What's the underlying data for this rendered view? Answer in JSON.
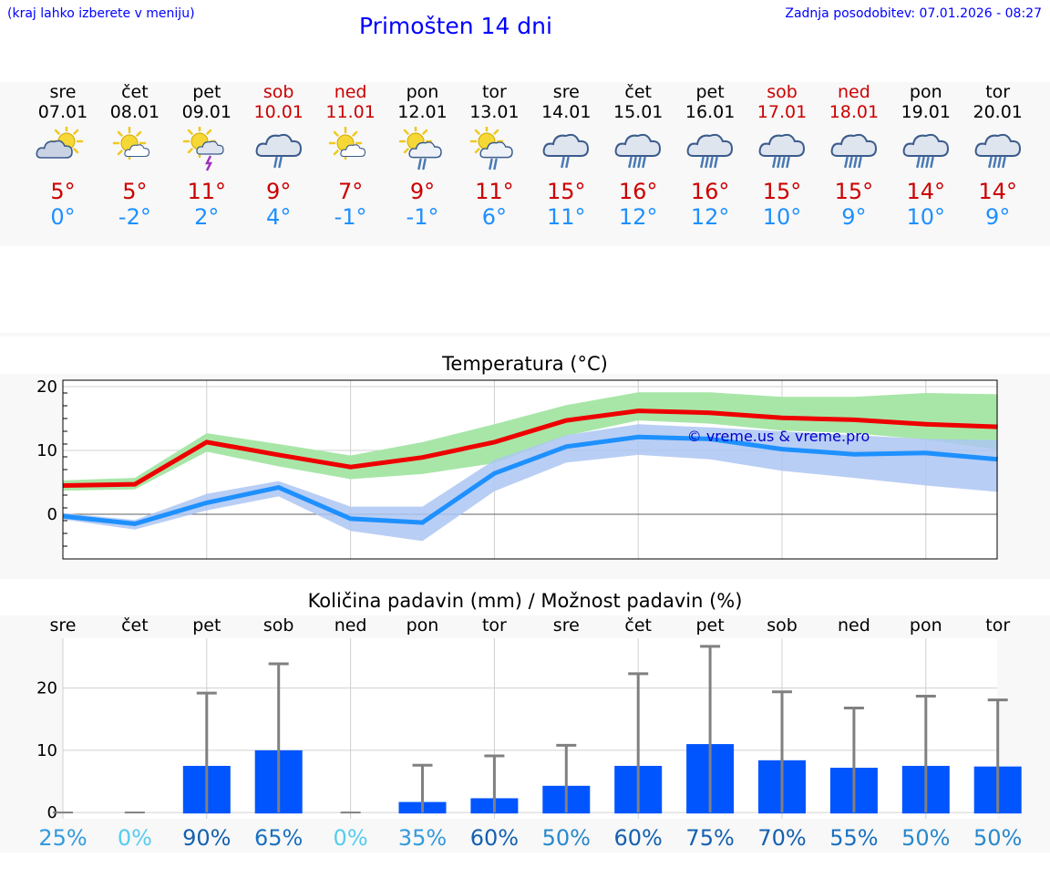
{
  "header": {
    "hint": "(kraj lahko izberete v meniju)",
    "title": "Primošten 14 dni",
    "updated": "Zadnja posodobitev: 07.01.2026 - 08:27"
  },
  "days": [
    {
      "name": "sre",
      "date": "07.01",
      "weekend": false,
      "icon": "partly-cloudy-icon",
      "max": "5°",
      "min": "0°"
    },
    {
      "name": "čet",
      "date": "08.01",
      "weekend": false,
      "icon": "mostly-sunny-icon",
      "max": "5°",
      "min": "-2°"
    },
    {
      "name": "pet",
      "date": "09.01",
      "weekend": false,
      "icon": "sun-cloud-thunder-icon",
      "max": "11°",
      "min": "2°"
    },
    {
      "name": "sob",
      "date": "10.01",
      "weekend": true,
      "icon": "cloud-rain-icon",
      "max": "9°",
      "min": "4°"
    },
    {
      "name": "ned",
      "date": "11.01",
      "weekend": true,
      "icon": "mostly-sunny-icon",
      "max": "7°",
      "min": "-1°"
    },
    {
      "name": "pon",
      "date": "12.01",
      "weekend": false,
      "icon": "sun-cloud-rain-icon",
      "max": "9°",
      "min": "-1°"
    },
    {
      "name": "tor",
      "date": "13.01",
      "weekend": false,
      "icon": "sun-cloud-rain-icon",
      "max": "11°",
      "min": "6°"
    },
    {
      "name": "sre",
      "date": "14.01",
      "weekend": false,
      "icon": "cloud-rain-icon",
      "max": "15°",
      "min": "11°"
    },
    {
      "name": "čet",
      "date": "15.01",
      "weekend": false,
      "icon": "cloud-heavy-rain-icon",
      "max": "16°",
      "min": "12°"
    },
    {
      "name": "pet",
      "date": "16.01",
      "weekend": false,
      "icon": "cloud-heavy-rain-icon",
      "max": "16°",
      "min": "12°"
    },
    {
      "name": "sob",
      "date": "17.01",
      "weekend": true,
      "icon": "cloud-heavy-rain-icon",
      "max": "15°",
      "min": "10°"
    },
    {
      "name": "ned",
      "date": "18.01",
      "weekend": true,
      "icon": "cloud-heavy-rain-icon",
      "max": "15°",
      "min": "9°"
    },
    {
      "name": "pon",
      "date": "19.01",
      "weekend": false,
      "icon": "cloud-heavy-rain-icon",
      "max": "14°",
      "min": "10°"
    },
    {
      "name": "tor",
      "date": "20.01",
      "weekend": false,
      "icon": "cloud-heavy-rain-icon",
      "max": "14°",
      "min": "9°"
    }
  ],
  "colors": {
    "max_line": "#ee0000",
    "max_band": "#a8e6a8",
    "min_line": "#1e90ff",
    "min_band": "#adc6f2",
    "bar": "#0055ff",
    "whisker": "#808080",
    "watermark": "#0000cc"
  },
  "chart_data": [
    {
      "type": "line",
      "title": "Temperatura (°C)",
      "watermark": "© vreme.us & vreme.pro",
      "ylim": [
        -7,
        21
      ],
      "yticks": [
        0,
        10,
        20
      ],
      "series": [
        {
          "name": "max",
          "values": [
            4.5,
            4.7,
            11.3,
            9.3,
            7.4,
            8.9,
            11.3,
            14.7,
            16.2,
            15.9,
            15.1,
            14.8,
            14.1,
            13.7
          ],
          "band_low": [
            3.7,
            3.9,
            9.8,
            7.5,
            5.5,
            6.3,
            8.0,
            12.3,
            14.7,
            14.2,
            13.1,
            12.7,
            11.7,
            10.1
          ],
          "band_high": [
            5.3,
            5.7,
            12.7,
            11.0,
            9.2,
            11.3,
            14.1,
            17.1,
            19.1,
            19.1,
            18.4,
            18.4,
            19.0,
            18.8
          ]
        },
        {
          "name": "min",
          "values": [
            -0.3,
            -1.5,
            1.8,
            4.2,
            -0.7,
            -1.3,
            6.4,
            10.6,
            12.1,
            11.8,
            10.2,
            9.4,
            9.6,
            8.6
          ],
          "band_low": [
            -0.8,
            -2.4,
            0.6,
            2.8,
            -2.6,
            -4.2,
            3.6,
            8.1,
            9.3,
            8.6,
            6.8,
            5.7,
            4.5,
            3.5
          ],
          "band_high": [
            0.2,
            -0.9,
            3.2,
            5.2,
            1.2,
            1.2,
            8.5,
            12.4,
            14.1,
            13.6,
            13.0,
            12.4,
            11.8,
            11.6
          ]
        }
      ]
    },
    {
      "type": "bar",
      "title": "Količina padavin (mm) / Možnost padavin (%)",
      "categories": [
        "sre",
        "čet",
        "pet",
        "sob",
        "ned",
        "pon",
        "tor",
        "sre",
        "čet",
        "pet",
        "sob",
        "ned",
        "pon",
        "tor"
      ],
      "values": [
        0,
        0,
        7.5,
        10,
        0,
        1.7,
        2.3,
        4.3,
        7.5,
        11,
        8.4,
        7.2,
        7.5,
        7.4
      ],
      "whisker_max": [
        0,
        0,
        19.2,
        23.9,
        0,
        7.6,
        9.1,
        10.8,
        22.3,
        26.7,
        19.4,
        16.8,
        18.7,
        18.1
      ],
      "ylim": [
        -1,
        28
      ],
      "yticks": [
        0,
        10,
        20
      ],
      "probabilities": [
        "25%",
        "0%",
        "90%",
        "65%",
        "0%",
        "35%",
        "60%",
        "50%",
        "60%",
        "75%",
        "70%",
        "55%",
        "50%",
        "50%"
      ],
      "probability_colors": [
        "#3399dd",
        "#55ccee",
        "#1460b0",
        "#1a70c0",
        "#55ccee",
        "#3399dd",
        "#1460b0",
        "#2888cc",
        "#1460b0",
        "#1460b0",
        "#1460b0",
        "#1a70c0",
        "#2888cc",
        "#2888cc"
      ]
    }
  ]
}
